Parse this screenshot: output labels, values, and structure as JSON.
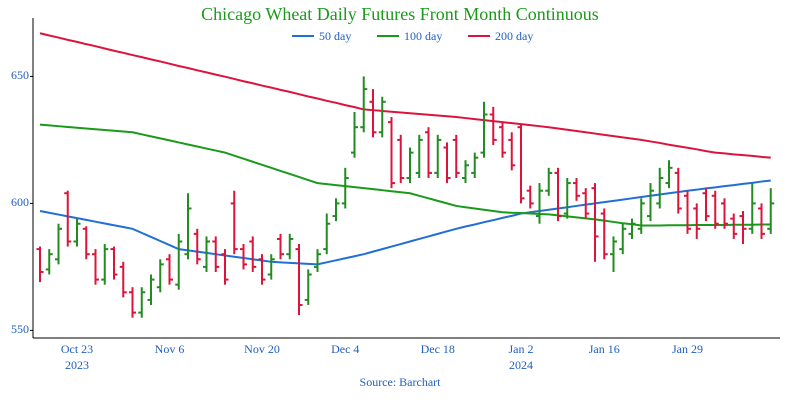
{
  "chart_data": {
    "type": "ohlc",
    "title": "Chicago Wheat Daily Futures Front Month Continuous",
    "source": "Source: Barchart",
    "categories": [
      null,
      null,
      null,
      null,
      "Oct 23",
      null,
      null,
      null,
      null,
      null,
      null,
      null,
      null,
      null,
      "Nov 6",
      null,
      null,
      null,
      null,
      null,
      null,
      null,
      null,
      null,
      "Nov 20",
      null,
      null,
      null,
      null,
      null,
      null,
      null,
      null,
      "Dec 4",
      null,
      null,
      null,
      null,
      null,
      null,
      null,
      null,
      null,
      "Dec 18",
      null,
      null,
      null,
      null,
      null,
      null,
      null,
      null,
      "Jan 2",
      null,
      null,
      null,
      null,
      null,
      null,
      null,
      null,
      "Jan 16",
      null,
      null,
      null,
      null,
      null,
      null,
      null,
      null,
      "Jan 29",
      null,
      null,
      null,
      null,
      null,
      null,
      null,
      null,
      null
    ],
    "category_years": [
      null,
      null,
      null,
      null,
      "2023",
      null,
      null,
      null,
      null,
      null,
      null,
      null,
      null,
      null,
      null,
      null,
      null,
      null,
      null,
      null,
      null,
      null,
      null,
      null,
      null,
      null,
      null,
      null,
      null,
      null,
      null,
      null,
      null,
      null,
      null,
      null,
      null,
      null,
      null,
      null,
      null,
      null,
      null,
      null,
      null,
      null,
      null,
      null,
      null,
      null,
      null,
      null,
      "2024",
      null,
      null,
      null,
      null,
      null,
      null,
      null,
      null,
      null,
      null,
      null,
      null,
      null,
      null,
      null,
      null,
      null,
      null,
      null,
      null,
      null,
      null,
      null,
      null,
      null,
      null,
      null
    ],
    "open": [
      582,
      574,
      578,
      604,
      585,
      590,
      580,
      570,
      582,
      575,
      565,
      557,
      562,
      567,
      578,
      568,
      580,
      588,
      575,
      585,
      580,
      600,
      582,
      585,
      578,
      572,
      586,
      580,
      582,
      562,
      575,
      582,
      595,
      600,
      620,
      630,
      640,
      628,
      632,
      625,
      610,
      612,
      628,
      612,
      622,
      625,
      610,
      612,
      620,
      635,
      630,
      625,
      630,
      605,
      595,
      605,
      612,
      596,
      608,
      604,
      606,
      596,
      580,
      582,
      588,
      590,
      595,
      600,
      608,
      612,
      603,
      598,
      604,
      603,
      600,
      594,
      595,
      590,
      598,
      590
    ],
    "high": [
      583,
      582,
      592,
      605,
      594,
      591,
      582,
      584,
      583,
      577,
      567,
      567,
      572,
      578,
      580,
      588,
      604,
      590,
      587,
      587,
      582,
      605,
      584,
      587,
      580,
      580,
      588,
      588,
      584,
      574,
      582,
      596,
      602,
      614,
      636,
      650,
      645,
      642,
      634,
      627,
      622,
      627,
      630,
      627,
      624,
      627,
      617,
      620,
      640,
      638,
      632,
      628,
      631,
      607,
      608,
      614,
      614,
      610,
      610,
      606,
      608,
      598,
      587,
      592,
      594,
      602,
      608,
      614,
      617,
      614,
      605,
      600,
      606,
      605,
      602,
      596,
      597,
      608,
      600,
      606
    ],
    "low": [
      569,
      572,
      576,
      583,
      583,
      578,
      568,
      568,
      570,
      563,
      555,
      555,
      560,
      565,
      568,
      566,
      578,
      576,
      573,
      573,
      568,
      580,
      574,
      573,
      568,
      570,
      578,
      578,
      556,
      560,
      573,
      580,
      593,
      598,
      618,
      628,
      626,
      626,
      606,
      608,
      608,
      610,
      610,
      610,
      608,
      610,
      608,
      610,
      618,
      623,
      618,
      613,
      600,
      598,
      592,
      603,
      593,
      594,
      601,
      594,
      577,
      578,
      573,
      580,
      586,
      588,
      593,
      598,
      606,
      596,
      588,
      586,
      593,
      590,
      590,
      586,
      584,
      588,
      586,
      588
    ],
    "close": [
      573,
      580,
      590,
      585,
      592,
      580,
      570,
      582,
      572,
      565,
      557,
      565,
      570,
      576,
      570,
      585,
      598,
      578,
      585,
      575,
      570,
      582,
      576,
      575,
      570,
      578,
      580,
      586,
      560,
      572,
      580,
      592,
      600,
      610,
      630,
      645,
      628,
      640,
      608,
      610,
      620,
      625,
      612,
      625,
      610,
      612,
      615,
      618,
      635,
      625,
      620,
      615,
      602,
      600,
      605,
      612,
      595,
      608,
      603,
      596,
      587,
      580,
      585,
      590,
      592,
      600,
      605,
      610,
      614,
      598,
      590,
      590,
      595,
      592,
      592,
      588,
      590,
      600,
      588,
      600
    ],
    "up_color": "#228b22",
    "down_color": "#dc143c",
    "series": [
      {
        "name": "50 day",
        "color": "#1f6fd6",
        "values": [
          597,
          596.3,
          595.6,
          594.9,
          594.2,
          593.5,
          592.8,
          592.1,
          591.4,
          590.7,
          590,
          588.4,
          586.8,
          585.2,
          583.6,
          582,
          581.5,
          581,
          580.5,
          580,
          579.5,
          579,
          578.5,
          578,
          577.5,
          577,
          576.8,
          576.6,
          576.4,
          576.2,
          576,
          576.8,
          577.6,
          578.4,
          579.2,
          580,
          581,
          582,
          583,
          584,
          585,
          586,
          587,
          588,
          589,
          590,
          590.9,
          591.7,
          592.6,
          593.4,
          594.3,
          595.1,
          596,
          596.5,
          597,
          597.5,
          598,
          598.5,
          599,
          599.5,
          600,
          600.5,
          601,
          601.5,
          602,
          602.5,
          603,
          603.5,
          604,
          604.5,
          605,
          605.4,
          605.9,
          606.3,
          606.8,
          607.2,
          607.7,
          608.1,
          608.6,
          609
        ]
      },
      {
        "name": "100 day",
        "color": "#1a9a1a",
        "values": [
          631,
          630.7,
          630.4,
          630.1,
          629.8,
          629.5,
          629.2,
          628.9,
          628.6,
          628.3,
          628,
          627.2,
          626.4,
          625.6,
          624.8,
          624,
          623.2,
          622.4,
          621.6,
          620.8,
          620,
          618.8,
          617.6,
          616.4,
          615.2,
          614,
          612.8,
          611.6,
          610.4,
          609.2,
          608,
          607.6,
          607.2,
          606.8,
          606.4,
          606,
          605.6,
          605.2,
          604.8,
          604.4,
          604,
          603,
          602,
          601,
          600,
          599,
          598.5,
          598,
          597.5,
          597,
          596.5,
          596.3,
          596.2,
          596,
          595.8,
          595.7,
          595.3,
          594.9,
          594.5,
          594.1,
          593.7,
          593.2,
          592.7,
          592.2,
          591.8,
          591.3,
          591.3,
          591.3,
          591.4,
          591.4,
          591.4,
          591.5,
          591.5,
          591.5,
          591.5,
          591.6,
          591.6,
          591.6,
          591.7,
          591.7
        ]
      },
      {
        "name": "200 day",
        "color": "#dc143c",
        "values": [
          667,
          666.1,
          665.3,
          664.4,
          663.6,
          662.7,
          661.9,
          661,
          660.1,
          659.3,
          658.4,
          657.6,
          656.7,
          655.9,
          655,
          654.1,
          653.3,
          652.4,
          651.6,
          650.7,
          649.9,
          649,
          648.1,
          647.3,
          646.4,
          645.6,
          644.7,
          643.9,
          643,
          642.1,
          641.3,
          640.4,
          639.6,
          638.7,
          637.9,
          637,
          636.7,
          636.4,
          636.1,
          635.8,
          635.5,
          635.2,
          634.9,
          634.6,
          634.3,
          634,
          633.6,
          633.2,
          632.8,
          632.4,
          632,
          631.6,
          631.2,
          630.8,
          630.4,
          630,
          629.5,
          629,
          628.5,
          628,
          627.5,
          627,
          626.5,
          626,
          625.5,
          625,
          624.4,
          623.8,
          623.1,
          622.5,
          621.9,
          621.3,
          620.6,
          620,
          619.7,
          619.3,
          619,
          618.7,
          618.3,
          618
        ]
      }
    ],
    "ylim": [
      547,
      673
    ],
    "yticks": [
      550,
      600,
      650
    ]
  }
}
